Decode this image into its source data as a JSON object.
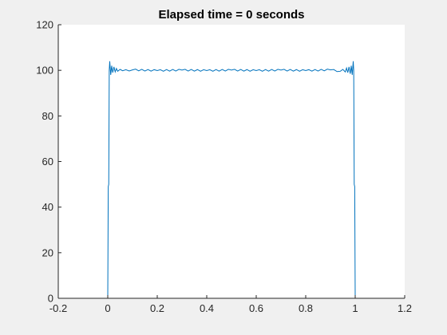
{
  "chart_data": {
    "type": "line",
    "title": "Elapsed time = 0 seconds",
    "xlabel": "",
    "ylabel": "",
    "xlim": [
      -0.2,
      1.2
    ],
    "ylim": [
      0,
      120
    ],
    "xticks": [
      -0.2,
      0,
      0.2,
      0.4,
      0.6,
      0.8,
      1,
      1.2
    ],
    "xtick_labels": [
      "-0.2",
      "0",
      "0.2",
      "0.4",
      "0.6",
      "0.8",
      "1",
      "1.2"
    ],
    "yticks": [
      0,
      20,
      40,
      60,
      80,
      100,
      120
    ],
    "ytick_labels": [
      "0",
      "20",
      "40",
      "60",
      "80",
      "100",
      "120"
    ],
    "grid": false,
    "line_color": "#0072bd",
    "series": [
      {
        "values_description_free": true,
        "x": [
          0,
          0.002,
          0.004,
          0.006,
          0.008,
          0.012,
          0.016,
          0.02,
          0.025,
          0.03,
          0.035,
          0.04,
          0.05,
          0.06,
          0.1,
          0.2,
          0.3,
          0.4,
          0.5,
          0.6,
          0.7,
          0.8,
          0.9,
          0.94,
          0.95,
          0.96,
          0.965,
          0.97,
          0.975,
          0.98,
          0.984,
          0.988,
          0.992,
          0.994,
          0.996,
          0.998,
          1.0
        ],
        "y": [
          0,
          49,
          50,
          100,
          104,
          98,
          102,
          99,
          101.5,
          99.3,
          100.8,
          99.6,
          100.4,
          99.8,
          100.2,
          99.9,
          100.1,
          99.9,
          100.1,
          99.9,
          100.1,
          99.9,
          100.2,
          99.6,
          100.4,
          99.3,
          101.0,
          99.0,
          101.5,
          98.5,
          102.0,
          98.0,
          104.0,
          100.0,
          50,
          49,
          0
        ]
      }
    ]
  }
}
